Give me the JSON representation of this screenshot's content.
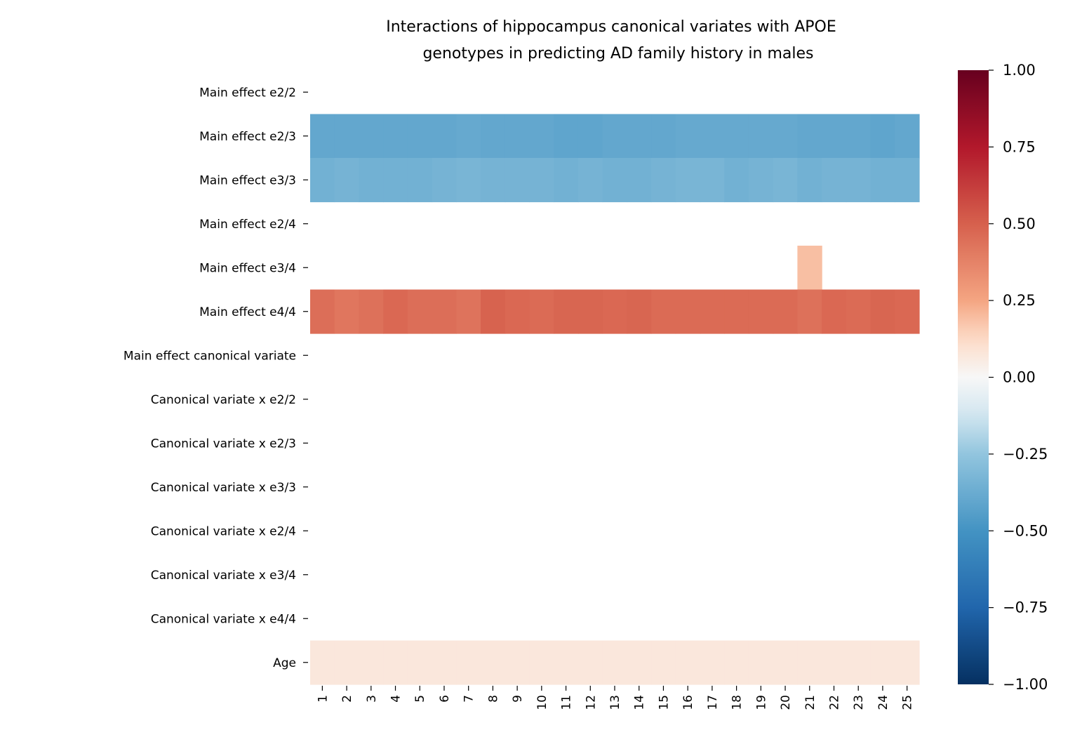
{
  "chart_data": {
    "type": "heatmap",
    "title": [
      "Interactions of hippocampus canonical variates with APOE",
      "genotypes in predicting AD family history in males"
    ],
    "xlabel": "",
    "ylabel": "",
    "x_categories": [
      "1",
      "2",
      "3",
      "4",
      "5",
      "6",
      "7",
      "8",
      "9",
      "10",
      "11",
      "12",
      "13",
      "14",
      "15",
      "16",
      "17",
      "18",
      "19",
      "20",
      "21",
      "22",
      "23",
      "24",
      "25"
    ],
    "y_categories": [
      "Main effect e2/2",
      "Main effect e2/3",
      "Main effect e3/3",
      "Main effect e2/4",
      "Main effect e3/4",
      "Main effect e4/4",
      "Main effect canonical variate",
      "Canonical variate x e2/2",
      "Canonical variate x e2/3",
      "Canonical variate x e3/3",
      "Canonical variate x e2/4",
      "Canonical variate x e3/4",
      "Canonical variate x e4/4",
      "Age"
    ],
    "values": [
      [
        null,
        null,
        null,
        null,
        null,
        null,
        null,
        null,
        null,
        null,
        null,
        null,
        null,
        null,
        null,
        null,
        null,
        null,
        null,
        null,
        null,
        null,
        null,
        null,
        null
      ],
      [
        -0.4,
        -0.4,
        -0.4,
        -0.4,
        -0.4,
        -0.4,
        -0.39,
        -0.4,
        -0.4,
        -0.4,
        -0.41,
        -0.41,
        -0.4,
        -0.4,
        -0.4,
        -0.39,
        -0.39,
        -0.39,
        -0.39,
        -0.39,
        -0.4,
        -0.4,
        -0.4,
        -0.41,
        -0.4
      ],
      [
        -0.35,
        -0.34,
        -0.35,
        -0.35,
        -0.35,
        -0.34,
        -0.33,
        -0.34,
        -0.34,
        -0.34,
        -0.35,
        -0.34,
        -0.35,
        -0.35,
        -0.34,
        -0.33,
        -0.33,
        -0.35,
        -0.34,
        -0.33,
        -0.35,
        -0.34,
        -0.34,
        -0.35,
        -0.35
      ],
      [
        null,
        null,
        null,
        null,
        null,
        null,
        null,
        null,
        null,
        null,
        null,
        null,
        null,
        null,
        null,
        null,
        null,
        null,
        null,
        null,
        null,
        null,
        null,
        null,
        null
      ],
      [
        null,
        null,
        null,
        null,
        null,
        null,
        null,
        null,
        null,
        null,
        null,
        null,
        null,
        null,
        null,
        null,
        null,
        null,
        null,
        null,
        0.19,
        null,
        null,
        null,
        null
      ],
      [
        0.45,
        0.42,
        0.44,
        0.47,
        0.45,
        0.45,
        0.43,
        0.49,
        0.47,
        0.46,
        0.48,
        0.48,
        0.47,
        0.48,
        0.46,
        0.46,
        0.46,
        0.46,
        0.46,
        0.46,
        0.44,
        0.47,
        0.46,
        0.48,
        0.47
      ],
      [
        null,
        null,
        null,
        null,
        null,
        null,
        null,
        null,
        null,
        null,
        null,
        null,
        null,
        null,
        null,
        null,
        null,
        null,
        null,
        null,
        null,
        null,
        null,
        null,
        null
      ],
      [
        null,
        null,
        null,
        null,
        null,
        null,
        null,
        null,
        null,
        null,
        null,
        null,
        null,
        null,
        null,
        null,
        null,
        null,
        null,
        null,
        null,
        null,
        null,
        null,
        null
      ],
      [
        null,
        null,
        null,
        null,
        null,
        null,
        null,
        null,
        null,
        null,
        null,
        null,
        null,
        null,
        null,
        null,
        null,
        null,
        null,
        null,
        null,
        null,
        null,
        null,
        null
      ],
      [
        null,
        null,
        null,
        null,
        null,
        null,
        null,
        null,
        null,
        null,
        null,
        null,
        null,
        null,
        null,
        null,
        null,
        null,
        null,
        null,
        null,
        null,
        null,
        null,
        null
      ],
      [
        null,
        null,
        null,
        null,
        null,
        null,
        null,
        null,
        null,
        null,
        null,
        null,
        null,
        null,
        null,
        null,
        null,
        null,
        null,
        null,
        null,
        null,
        null,
        null,
        null
      ],
      [
        null,
        null,
        null,
        null,
        null,
        null,
        null,
        null,
        null,
        null,
        null,
        null,
        null,
        null,
        null,
        null,
        null,
        null,
        null,
        null,
        null,
        null,
        null,
        null,
        null
      ],
      [
        null,
        null,
        null,
        null,
        null,
        null,
        null,
        null,
        null,
        null,
        null,
        null,
        null,
        null,
        null,
        null,
        null,
        null,
        null,
        null,
        null,
        null,
        null,
        null,
        null
      ],
      [
        0.07,
        0.07,
        0.07,
        0.07,
        0.07,
        0.07,
        0.07,
        0.07,
        0.07,
        0.07,
        0.07,
        0.07,
        0.07,
        0.07,
        0.07,
        0.07,
        0.07,
        0.07,
        0.07,
        0.07,
        0.07,
        0.07,
        0.07,
        0.07,
        0.07
      ]
    ],
    "colorbar": {
      "colormap": "RdBu_r",
      "range": [
        -1.0,
        1.0
      ],
      "ticks": [
        "1.00",
        "0.75",
        "0.50",
        "0.25",
        "0.00",
        "−0.25",
        "−0.50",
        "−0.75",
        "−1.00"
      ],
      "tick_values": [
        1.0,
        0.75,
        0.5,
        0.25,
        0.0,
        -0.25,
        -0.5,
        -0.75,
        -1.0
      ]
    }
  }
}
